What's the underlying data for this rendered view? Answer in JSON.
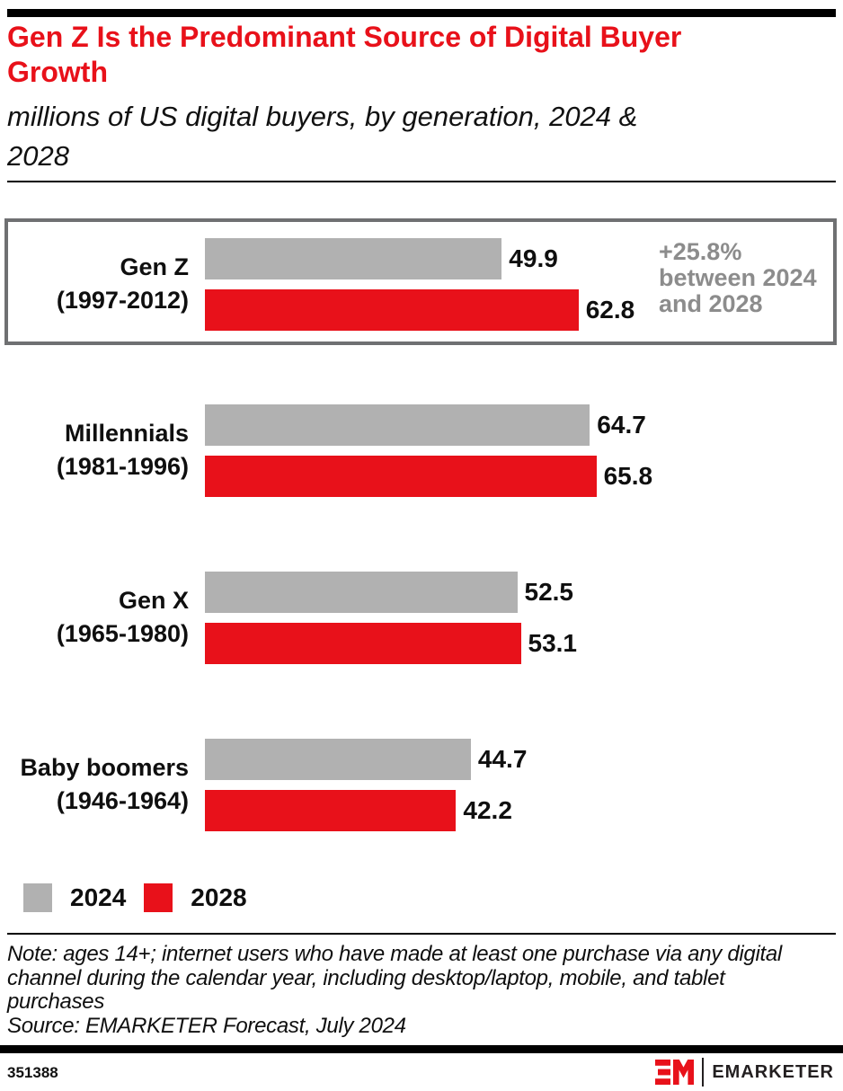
{
  "page": {
    "title": "Gen Z Is the Predominant Source of Digital Buyer\nGrowth",
    "subtitle": "millions of US digital buyers, by generation, 2024 &\n2028",
    "note": "Note: ages 14+; internet users who have made at least one purchase via any digital\nchannel during the calendar year, including desktop/laptop, mobile, and tablet\npurchases",
    "source": "Source: EMARKETER Forecast, July 2024",
    "chart_id": "351388",
    "brand": {
      "logo_monogram": "EM",
      "logo_text": "EMARKETER"
    }
  },
  "colors": {
    "accent_red": "#E8111A",
    "bar_gray": "#B1B1B1",
    "annotation_gray": "#8C8C8C",
    "box_border": "#6F7072",
    "bar_black": "#000000"
  },
  "chart_data": {
    "type": "bar",
    "orientation": "horizontal",
    "title": "Gen Z Is the Predominant Source of Digital Buyer Growth",
    "subtitle": "millions of US digital buyers, by generation, 2024 & 2028",
    "unit": "millions of US digital buyers",
    "categories": [
      "Gen Z\n(1997-2012)",
      "Millennials\n(1981-1996)",
      "Gen X\n(1965-1980)",
      "Baby boomers\n(1946-1964)"
    ],
    "series": [
      {
        "name": "2024",
        "color": "#B1B1B1",
        "values": [
          49.9,
          64.7,
          52.5,
          44.7
        ]
      },
      {
        "name": "2028",
        "color": "#E8111A",
        "values": [
          62.8,
          65.8,
          53.1,
          42.2
        ]
      }
    ],
    "value_labels": true,
    "xlim": [
      0,
      70
    ],
    "grid": false,
    "legend_position": "bottom-left",
    "highlighted_category": "Gen Z (1997-2012)",
    "annotation": {
      "text": "+25.8%\nbetween 2024\nand 2028",
      "applies_to": "Gen Z (1997-2012)"
    }
  },
  "legend": {
    "items": [
      {
        "label": "2024",
        "color_key": "bar_gray"
      },
      {
        "label": "2028",
        "color_key": "accent_red"
      }
    ]
  }
}
